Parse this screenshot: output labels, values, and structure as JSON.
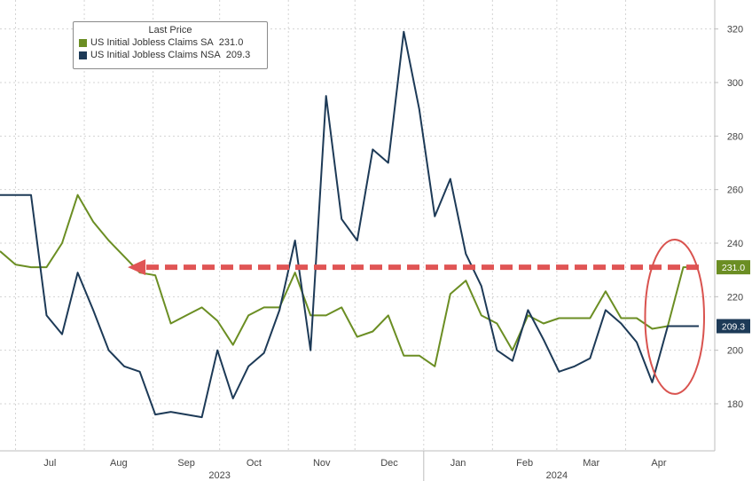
{
  "legend": {
    "header": "Last Price",
    "items": [
      {
        "name": "US Initial Jobless Claims SA",
        "value": "231.0",
        "color": "#6b8e23"
      },
      {
        "name": "US Initial Jobless Claims NSA",
        "value": "209.3",
        "color": "#1d3a57"
      }
    ]
  },
  "colors": {
    "sa": "#6b8e23",
    "nsa": "#1d3a57",
    "arrow": "#e05555",
    "circle": "#d9534f",
    "grid": "#d4d4d4"
  },
  "chart_data": {
    "type": "line",
    "xlabel": "",
    "ylabel": "",
    "ylim": [
      160,
      328
    ],
    "yticks": [
      180,
      200,
      220,
      240,
      260,
      280,
      300,
      320
    ],
    "grid": true,
    "legend_position": "top-left",
    "x": [
      "2023-06-24",
      "2023-07-01",
      "2023-07-08",
      "2023-07-15",
      "2023-07-22",
      "2023-07-29",
      "2023-08-05",
      "2023-08-12",
      "2023-08-19",
      "2023-08-26",
      "2023-09-02",
      "2023-09-09",
      "2023-09-16",
      "2023-09-23",
      "2023-09-30",
      "2023-10-07",
      "2023-10-14",
      "2023-10-21",
      "2023-10-28",
      "2023-11-04",
      "2023-11-11",
      "2023-11-18",
      "2023-11-25",
      "2023-12-02",
      "2023-12-09",
      "2023-12-16",
      "2023-12-23",
      "2023-12-30",
      "2024-01-06",
      "2024-01-13",
      "2024-01-20",
      "2024-01-27",
      "2024-02-03",
      "2024-02-10",
      "2024-02-17",
      "2024-02-24",
      "2024-03-02",
      "2024-03-09",
      "2024-03-16",
      "2024-03-23",
      "2024-03-30",
      "2024-04-06",
      "2024-04-13",
      "2024-04-20",
      "2024-04-27",
      "2024-05-04"
    ],
    "x_tick_labels": [
      {
        "label": "Jul",
        "date": "2023-07-01"
      },
      {
        "label": "Aug",
        "date": "2023-08-01"
      },
      {
        "label": "Sep",
        "date": "2023-09-01"
      },
      {
        "label": "Oct",
        "date": "2023-10-01"
      },
      {
        "label": "Nov",
        "date": "2023-11-01"
      },
      {
        "label": "Dec",
        "date": "2023-12-01"
      },
      {
        "label": "Jan",
        "date": "2024-01-01"
      },
      {
        "label": "Feb",
        "date": "2024-02-01"
      },
      {
        "label": "Mar",
        "date": "2024-03-01"
      },
      {
        "label": "Apr",
        "date": "2024-04-01"
      }
    ],
    "year_labels": [
      {
        "label": "2023",
        "date": "2023-10-01"
      },
      {
        "label": "2024",
        "date": "2024-03-01"
      }
    ],
    "series": [
      {
        "name": "US Initial Jobless Claims SA",
        "values": [
          237,
          232,
          231,
          231,
          240,
          258,
          248,
          241,
          235,
          229,
          228,
          210,
          213,
          216,
          211,
          202,
          213,
          216,
          216,
          229,
          213,
          213,
          216,
          205,
          207,
          213,
          198,
          198,
          194,
          221,
          226,
          213,
          210,
          200,
          213,
          210,
          212,
          212,
          212,
          222,
          212,
          212,
          208,
          209,
          231,
          231
        ],
        "last_label": "231.0"
      },
      {
        "name": "US Initial Jobless Claims NSA",
        "values": [
          258,
          258,
          258,
          213,
          206,
          229,
          215,
          200,
          194,
          192,
          176,
          177,
          176,
          175,
          200,
          182,
          194,
          199,
          215,
          241,
          200,
          295,
          249,
          241,
          275,
          270,
          319,
          290,
          250,
          264,
          236,
          224,
          200,
          196,
          215,
          204,
          192,
          194,
          197,
          215,
          210,
          203,
          188,
          209,
          209,
          209
        ],
        "last_label": "209.3"
      }
    ],
    "annotations": [
      {
        "type": "dashed-arrow",
        "from": {
          "x": "2024-05-04",
          "y": 231
        },
        "to": {
          "x": "2023-08-19",
          "y": 231
        }
      },
      {
        "type": "ellipse",
        "x_from": "2024-04-13",
        "x_to": "2024-05-04",
        "y_from": 185,
        "y_to": 240
      }
    ]
  }
}
